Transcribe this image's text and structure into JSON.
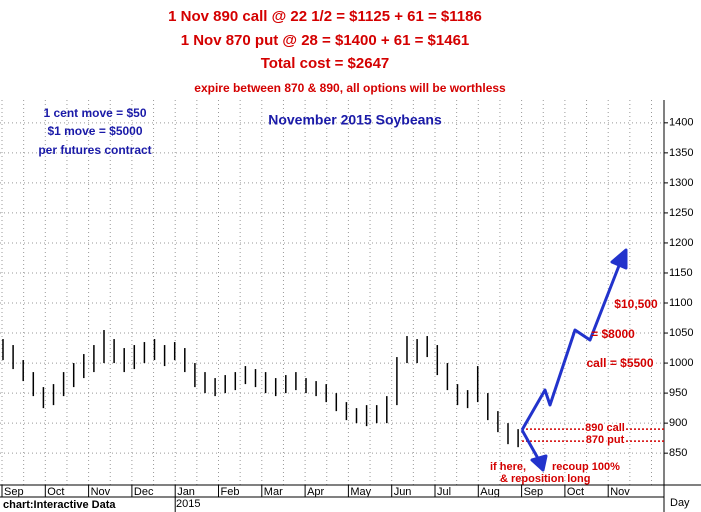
{
  "chart_data": {
    "type": "range_bar",
    "title": "November 2015 Soybeans",
    "header": [
      "1 Nov 890 call @ 22 1/2 = $1125 + 61 = $1186",
      "1 Nov 870 put @ 28 = $1400 + 61 = $1461",
      "Total cost = $2647"
    ],
    "header_note": "expire between 870 & 890, all options will be worthless",
    "box_note": [
      "1 cent move = $50",
      "$1 move = $5000",
      "per futures contract"
    ],
    "targets": [
      "$10,500",
      "= $8000",
      "call = $5500"
    ],
    "downside_note": [
      "if here,",
      "recoup 100%",
      "& reposition long"
    ],
    "source": "chart:Interactive Data",
    "year_label": "2015",
    "x_unit": "Day",
    "months": [
      "Sep",
      "Oct",
      "Nov",
      "Dec",
      "Jan",
      "Feb",
      "Mar",
      "Apr",
      "May",
      "Jun",
      "Jul",
      "Aug",
      "Sep",
      "Oct",
      "Nov"
    ],
    "high": [
      1040,
      1030,
      1005,
      985,
      960,
      965,
      985,
      1000,
      1015,
      1030,
      1055,
      1040,
      1025,
      1030,
      1035,
      1040,
      1030,
      1035,
      1025,
      1000,
      985,
      975,
      980,
      985,
      995,
      990,
      985,
      975,
      980,
      985,
      975,
      970,
      965,
      950,
      935,
      925,
      930,
      930,
      945,
      1010,
      1045,
      1040,
      1045,
      1030,
      1000,
      965,
      955,
      995,
      950,
      920,
      900,
      890
    ],
    "low": [
      1005,
      990,
      970,
      945,
      925,
      930,
      945,
      960,
      975,
      985,
      1000,
      1000,
      985,
      990,
      1000,
      1005,
      995,
      1005,
      985,
      960,
      950,
      945,
      950,
      955,
      965,
      960,
      950,
      945,
      950,
      955,
      950,
      945,
      935,
      920,
      905,
      900,
      895,
      900,
      900,
      930,
      1000,
      1000,
      1010,
      980,
      955,
      930,
      925,
      935,
      905,
      885,
      865,
      860
    ],
    "color": "#000000",
    "levels": [
      {
        "label": "890 call",
        "value": 890
      },
      {
        "label": "870 put",
        "value": 870
      }
    ],
    "level_color": "#d40000",
    "ylim": [
      797,
      1438
    ],
    "yticks": [
      850,
      900,
      950,
      1000,
      1050,
      1100,
      1150,
      1200,
      1250,
      1300,
      1350,
      1400
    ],
    "grid": true
  }
}
